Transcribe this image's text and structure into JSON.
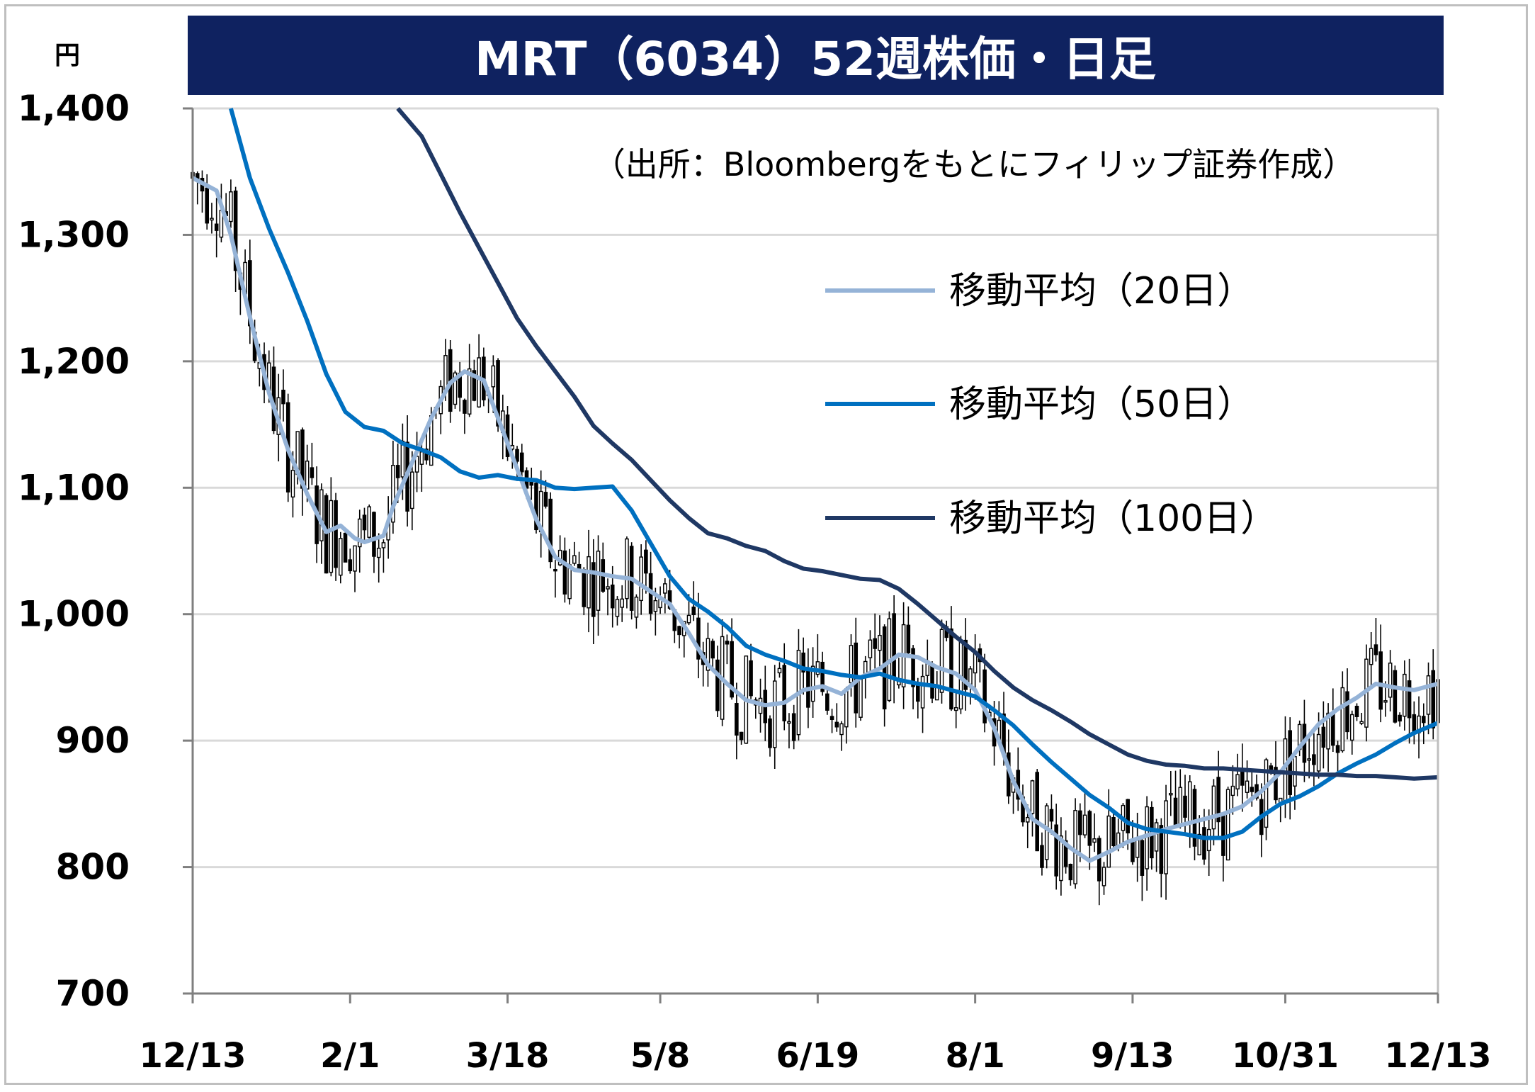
{
  "chart_data": {
    "type": "candlestick",
    "title": "MRT（6034）52週株価・日足",
    "source": "（出所：Bloombergをもとにフィリップ証券作成）",
    "unit": "円",
    "ylim": [
      700,
      1400
    ],
    "y_ticks": [
      "1,400",
      "1,300",
      "1,200",
      "1,100",
      "1,000",
      "900",
      "800",
      "700"
    ],
    "y_tick_values": [
      1400,
      1300,
      1200,
      1100,
      1000,
      900,
      800,
      700
    ],
    "x_ticks": [
      "12/13",
      "2/1",
      "3/18",
      "5/8",
      "6/19",
      "8/1",
      "9/13",
      "10/31",
      "12/13"
    ],
    "x_tick_index": [
      0,
      33,
      66,
      98,
      131,
      164,
      197,
      229,
      261
    ],
    "grid": true,
    "legend_position": "right",
    "colors": {
      "title_bg": "#0f2260",
      "ma20": "#95b3d7",
      "ma50": "#0070c0",
      "ma100": "#1f3864",
      "grid": "#d9d9d9",
      "candle": "#000000"
    },
    "series": [
      {
        "name": "移動平均（20日）",
        "key": "ma20",
        "points": [
          [
            0,
            1345
          ],
          [
            5,
            1335
          ],
          [
            8,
            1300
          ],
          [
            12,
            1235
          ],
          [
            16,
            1175
          ],
          [
            20,
            1130
          ],
          [
            24,
            1095
          ],
          [
            28,
            1065
          ],
          [
            31,
            1070
          ],
          [
            34,
            1060
          ],
          [
            36,
            1057
          ],
          [
            40,
            1062
          ],
          [
            42,
            1085
          ],
          [
            46,
            1120
          ],
          [
            50,
            1155
          ],
          [
            54,
            1183
          ],
          [
            57,
            1192
          ],
          [
            61,
            1185
          ],
          [
            64,
            1155
          ],
          [
            68,
            1115
          ],
          [
            72,
            1075
          ],
          [
            76,
            1045
          ],
          [
            80,
            1035
          ],
          [
            84,
            1033
          ],
          [
            88,
            1030
          ],
          [
            92,
            1028
          ],
          [
            96,
            1018
          ],
          [
            100,
            1008
          ],
          [
            104,
            985
          ],
          [
            108,
            960
          ],
          [
            112,
            945
          ],
          [
            116,
            932
          ],
          [
            120,
            928
          ],
          [
            124,
            930
          ],
          [
            128,
            940
          ],
          [
            132,
            943
          ],
          [
            136,
            937
          ],
          [
            140,
            950
          ],
          [
            144,
            957
          ],
          [
            148,
            968
          ],
          [
            152,
            966
          ],
          [
            156,
            958
          ],
          [
            160,
            953
          ],
          [
            164,
            940
          ],
          [
            168,
            910
          ],
          [
            172,
            868
          ],
          [
            176,
            838
          ],
          [
            180,
            828
          ],
          [
            184,
            815
          ],
          [
            188,
            805
          ],
          [
            192,
            812
          ],
          [
            196,
            820
          ],
          [
            200,
            825
          ],
          [
            204,
            830
          ],
          [
            208,
            834
          ],
          [
            212,
            838
          ],
          [
            216,
            842
          ],
          [
            220,
            848
          ],
          [
            224,
            860
          ],
          [
            228,
            875
          ],
          [
            232,
            895
          ],
          [
            236,
            913
          ],
          [
            240,
            925
          ],
          [
            244,
            934
          ],
          [
            248,
            945
          ],
          [
            252,
            942
          ],
          [
            256,
            940
          ],
          [
            261,
            945
          ]
        ]
      },
      {
        "name": "移動平均（50日）",
        "key": "ma50",
        "points": [
          [
            8,
            1400
          ],
          [
            12,
            1345
          ],
          [
            16,
            1305
          ],
          [
            20,
            1270
          ],
          [
            24,
            1232
          ],
          [
            28,
            1190
          ],
          [
            32,
            1160
          ],
          [
            36,
            1148
          ],
          [
            40,
            1145
          ],
          [
            44,
            1135
          ],
          [
            48,
            1130
          ],
          [
            52,
            1124
          ],
          [
            56,
            1113
          ],
          [
            60,
            1108
          ],
          [
            64,
            1110
          ],
          [
            68,
            1107
          ],
          [
            72,
            1106
          ],
          [
            76,
            1100
          ],
          [
            80,
            1099
          ],
          [
            84,
            1100
          ],
          [
            88,
            1101
          ],
          [
            92,
            1082
          ],
          [
            96,
            1056
          ],
          [
            100,
            1030
          ],
          [
            104,
            1012
          ],
          [
            108,
            1002
          ],
          [
            112,
            990
          ],
          [
            116,
            975
          ],
          [
            120,
            968
          ],
          [
            124,
            963
          ],
          [
            128,
            957
          ],
          [
            132,
            955
          ],
          [
            136,
            952
          ],
          [
            140,
            950
          ],
          [
            144,
            953
          ],
          [
            148,
            948
          ],
          [
            152,
            945
          ],
          [
            156,
            943
          ],
          [
            160,
            939
          ],
          [
            164,
            935
          ],
          [
            168,
            924
          ],
          [
            172,
            912
          ],
          [
            176,
            897
          ],
          [
            180,
            883
          ],
          [
            184,
            870
          ],
          [
            188,
            857
          ],
          [
            192,
            847
          ],
          [
            196,
            835
          ],
          [
            200,
            830
          ],
          [
            204,
            828
          ],
          [
            208,
            826
          ],
          [
            212,
            823
          ],
          [
            216,
            823
          ],
          [
            220,
            828
          ],
          [
            224,
            840
          ],
          [
            228,
            850
          ],
          [
            232,
            856
          ],
          [
            236,
            864
          ],
          [
            240,
            874
          ],
          [
            244,
            882
          ],
          [
            248,
            889
          ],
          [
            252,
            898
          ],
          [
            256,
            906
          ],
          [
            261,
            914
          ]
        ]
      },
      {
        "name": "移動平均（100日）",
        "key": "ma100",
        "points": [
          [
            43,
            1400
          ],
          [
            48,
            1378
          ],
          [
            52,
            1348
          ],
          [
            56,
            1318
          ],
          [
            60,
            1290
          ],
          [
            64,
            1262
          ],
          [
            68,
            1234
          ],
          [
            72,
            1212
          ],
          [
            76,
            1192
          ],
          [
            80,
            1172
          ],
          [
            84,
            1149
          ],
          [
            88,
            1135
          ],
          [
            92,
            1122
          ],
          [
            96,
            1106
          ],
          [
            100,
            1090
          ],
          [
            104,
            1076
          ],
          [
            108,
            1064
          ],
          [
            112,
            1060
          ],
          [
            116,
            1054
          ],
          [
            120,
            1050
          ],
          [
            124,
            1042
          ],
          [
            128,
            1036
          ],
          [
            132,
            1034
          ],
          [
            136,
            1031
          ],
          [
            140,
            1028
          ],
          [
            144,
            1027
          ],
          [
            148,
            1020
          ],
          [
            152,
            1008
          ],
          [
            156,
            995
          ],
          [
            160,
            982
          ],
          [
            164,
            970
          ],
          [
            168,
            955
          ],
          [
            172,
            942
          ],
          [
            176,
            932
          ],
          [
            180,
            924
          ],
          [
            184,
            915
          ],
          [
            188,
            905
          ],
          [
            192,
            897
          ],
          [
            196,
            889
          ],
          [
            200,
            884
          ],
          [
            204,
            881
          ],
          [
            208,
            880
          ],
          [
            212,
            878
          ],
          [
            216,
            878
          ],
          [
            220,
            877
          ],
          [
            224,
            876
          ],
          [
            228,
            875
          ],
          [
            232,
            874
          ],
          [
            236,
            873
          ],
          [
            240,
            873
          ],
          [
            244,
            872
          ],
          [
            248,
            872
          ],
          [
            252,
            871
          ],
          [
            256,
            870
          ],
          [
            261,
            871
          ]
        ]
      }
    ]
  }
}
